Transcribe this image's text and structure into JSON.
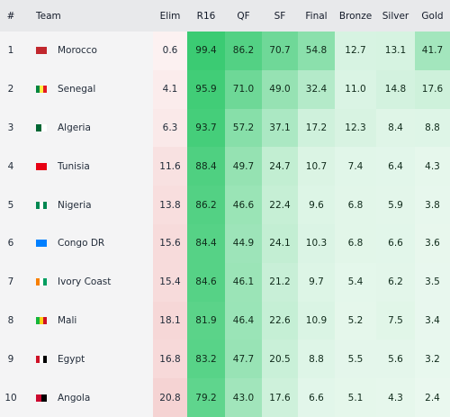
{
  "table": {
    "header": [
      "#",
      "Team",
      "Elim",
      "R16",
      "QF",
      "SF",
      "Final",
      "Bronze",
      "Silver",
      "Gold"
    ],
    "rows": [
      [
        "1",
        "Morocco",
        "0.6",
        "99.4",
        "86.2",
        "70.7",
        "54.8",
        "12.7",
        "13.1",
        "41.7"
      ],
      [
        "2",
        "Senegal",
        "4.1",
        "95.9",
        "71.0",
        "49.0",
        "32.4",
        "11.0",
        "14.8",
        "17.6"
      ],
      [
        "3",
        "Algeria",
        "6.3",
        "93.7",
        "57.2",
        "37.1",
        "17.2",
        "12.3",
        "8.4",
        "8.8"
      ],
      [
        "4",
        "Tunisia",
        "11.6",
        "88.4",
        "49.7",
        "24.7",
        "10.7",
        "7.4",
        "6.4",
        "4.3"
      ],
      [
        "5",
        "Nigeria",
        "13.8",
        "86.2",
        "46.6",
        "22.4",
        "9.6",
        "6.8",
        "5.9",
        "3.8"
      ],
      [
        "6",
        "Congo DR",
        "15.6",
        "84.4",
        "44.9",
        "24.1",
        "10.3",
        "6.8",
        "6.6",
        "3.6"
      ],
      [
        "7",
        "Ivory Coast",
        "15.4",
        "84.6",
        "46.1",
        "21.2",
        "9.7",
        "5.4",
        "6.2",
        "3.5"
      ],
      [
        "8",
        "Mali",
        "18.1",
        "81.9",
        "46.4",
        "22.6",
        "10.9",
        "5.2",
        "7.5",
        "3.4"
      ],
      [
        "9",
        "Egypt",
        "16.8",
        "83.2",
        "47.7",
        "20.5",
        "8.8",
        "5.5",
        "5.6",
        "3.2"
      ],
      [
        "10",
        "Angola",
        "20.8",
        "79.2",
        "43.0",
        "17.6",
        "6.6",
        "5.1",
        "4.3",
        "2.4"
      ]
    ]
  }
}
